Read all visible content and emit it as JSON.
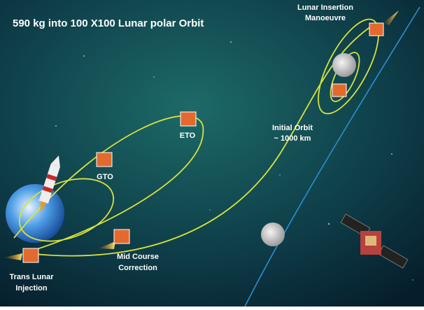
{
  "title": "590 kg into 100 X100 Lunar polar Orbit",
  "labels": {
    "lunar_insertion": [
      "Lunar Insertion",
      "Manoeuvre"
    ],
    "eto": [
      "ETO"
    ],
    "gto": [
      "GTO"
    ],
    "initial_orbit": [
      "Initial Orbit",
      "~ 1000 km"
    ],
    "mid_course": [
      "Mid Course",
      "Correction"
    ],
    "trans_lunar": [
      "Trans Lunar",
      "Injection"
    ]
  }
}
